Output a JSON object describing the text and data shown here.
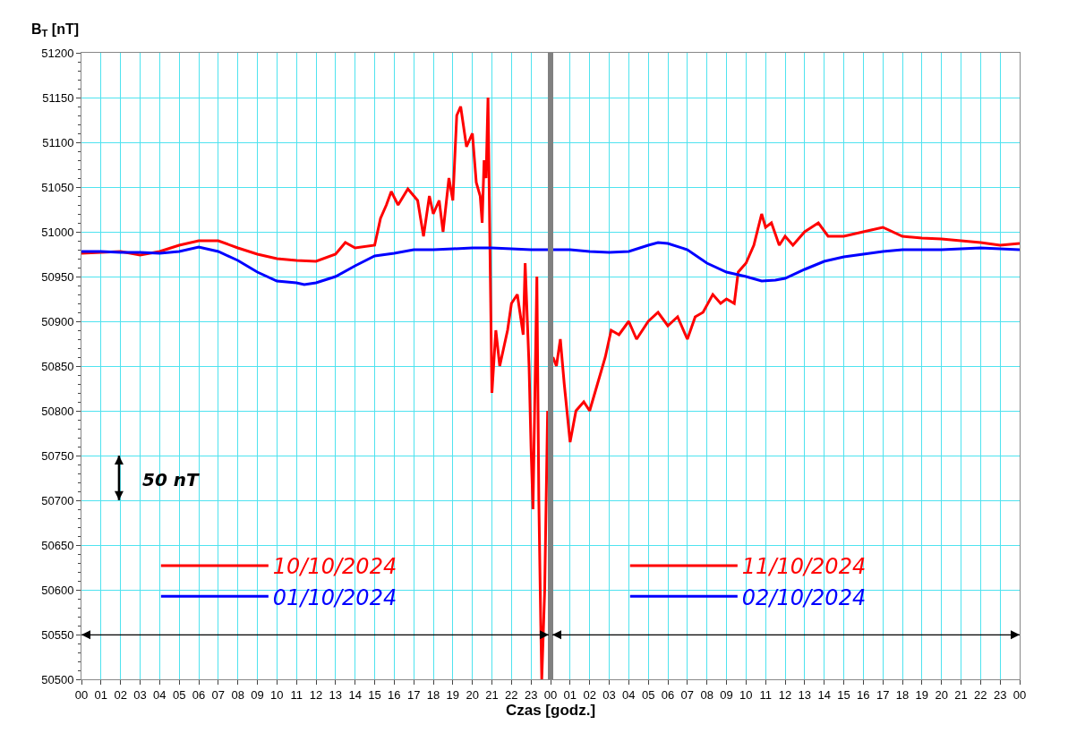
{
  "chart_data": {
    "type": "line",
    "xlabel": "Czas [godz.]",
    "ylabel": "B$_{T}$ [nT]",
    "xlim": [
      0,
      48
    ],
    "ylim": [
      50500,
      51200
    ],
    "xticks": [
      {
        "value": 0,
        "label": "00"
      },
      {
        "value": 1,
        "label": "01"
      },
      {
        "value": 2,
        "label": "02"
      },
      {
        "value": 3,
        "label": "03"
      },
      {
        "value": 4,
        "label": "04"
      },
      {
        "value": 5,
        "label": "05"
      },
      {
        "value": 6,
        "label": "06"
      },
      {
        "value": 7,
        "label": "07"
      },
      {
        "value": 8,
        "label": "08"
      },
      {
        "value": 9,
        "label": "09"
      },
      {
        "value": 10,
        "label": "10"
      },
      {
        "value": 11,
        "label": "11"
      },
      {
        "value": 12,
        "label": "12"
      },
      {
        "value": 13,
        "label": "13"
      },
      {
        "value": 14,
        "label": "14"
      },
      {
        "value": 15,
        "label": "15"
      },
      {
        "value": 16,
        "label": "16"
      },
      {
        "value": 17,
        "label": "17"
      },
      {
        "value": 18,
        "label": "18"
      },
      {
        "value": 19,
        "label": "19"
      },
      {
        "value": 20,
        "label": "20"
      },
      {
        "value": 21,
        "label": "21"
      },
      {
        "value": 22,
        "label": "22"
      },
      {
        "value": 23,
        "label": "23"
      },
      {
        "value": 24,
        "label": "00"
      },
      {
        "value": 25,
        "label": "01"
      },
      {
        "value": 26,
        "label": "02"
      },
      {
        "value": 27,
        "label": "03"
      },
      {
        "value": 28,
        "label": "04"
      },
      {
        "value": 29,
        "label": "05"
      },
      {
        "value": 30,
        "label": "06"
      },
      {
        "value": 31,
        "label": "07"
      },
      {
        "value": 32,
        "label": "08"
      },
      {
        "value": 33,
        "label": "09"
      },
      {
        "value": 34,
        "label": "10"
      },
      {
        "value": 35,
        "label": "11"
      },
      {
        "value": 36,
        "label": "12"
      },
      {
        "value": 37,
        "label": "13"
      },
      {
        "value": 38,
        "label": "14"
      },
      {
        "value": 39,
        "label": "15"
      },
      {
        "value": 40,
        "label": "16"
      },
      {
        "value": 41,
        "label": "17"
      },
      {
        "value": 42,
        "label": "18"
      },
      {
        "value": 43,
        "label": "19"
      },
      {
        "value": 44,
        "label": "20"
      },
      {
        "value": 45,
        "label": "21"
      },
      {
        "value": 46,
        "label": "22"
      },
      {
        "value": 47,
        "label": "23"
      },
      {
        "value": 48,
        "label": "00"
      }
    ],
    "yticks": [
      50500,
      50550,
      50600,
      50650,
      50700,
      50750,
      50800,
      50850,
      50900,
      50950,
      51000,
      51050,
      51100,
      51150,
      51200
    ],
    "grid": true,
    "legend": "bottom",
    "marker": "none",
    "line_style": "solid",
    "series": [
      {
        "name": "10/10/2024",
        "color": "#ff0000",
        "x": [
          0,
          1,
          2,
          3,
          4,
          5,
          6,
          7,
          8,
          9,
          10,
          11,
          12,
          13,
          13.5,
          14,
          15,
          15.3,
          15.6,
          15.85,
          16.2,
          16.7,
          17.2,
          17.5,
          17.8,
          18,
          18.3,
          18.5,
          18.8,
          19,
          19.2,
          19.4,
          19.7,
          20,
          20.2,
          20.4,
          20.5,
          20.6,
          20.7,
          20.8,
          20.9,
          21,
          21.2,
          21.4,
          21.6,
          21.8,
          22,
          22.3,
          22.6,
          22.7,
          22.9,
          23,
          23.1,
          23.3,
          23.4,
          23.5,
          23.55,
          23.7,
          23.85
        ],
        "values": [
          50976,
          50977,
          50978,
          50974,
          50978,
          50985,
          50990,
          50990,
          50982,
          50975,
          50970,
          50968,
          50967,
          50975,
          50988,
          50982,
          50985,
          51015,
          51030,
          51045,
          51030,
          51048,
          51035,
          50995,
          51040,
          51020,
          51035,
          51000,
          51060,
          51035,
          51130,
          51140,
          51095,
          51110,
          51055,
          51040,
          51010,
          51080,
          51060,
          51150,
          50980,
          50820,
          50890,
          50850,
          50870,
          50890,
          50920,
          50930,
          50885,
          50965,
          50850,
          50760,
          50690,
          50950,
          50700,
          50560,
          50500,
          50600,
          50800
        ]
      },
      {
        "name": "11/10/2024",
        "color": "#ff0000",
        "x": [
          24.12,
          24.3,
          24.5,
          24.7,
          25,
          25.3,
          25.7,
          26,
          26.4,
          26.8,
          27.1,
          27.5,
          28,
          28.4,
          29,
          29.5,
          30,
          30.5,
          31,
          31.4,
          31.8,
          32.3,
          32.7,
          33,
          33.4,
          33.6,
          34,
          34.4,
          34.8,
          35,
          35.3,
          35.7,
          36,
          36.4,
          37,
          37.7,
          38.2,
          39,
          40,
          41,
          42,
          43,
          44,
          45,
          46,
          47,
          48
        ],
        "values": [
          50860,
          50850,
          50880,
          50830,
          50765,
          50800,
          50810,
          50800,
          50830,
          50860,
          50890,
          50885,
          50900,
          50880,
          50900,
          50910,
          50895,
          50905,
          50880,
          50905,
          50910,
          50930,
          50920,
          50925,
          50920,
          50955,
          50965,
          50985,
          51020,
          51005,
          51010,
          50985,
          50995,
          50985,
          51000,
          51010,
          50995,
          50995,
          51000,
          51005,
          50995,
          50993,
          50992,
          50990,
          50988,
          50985,
          50987
        ]
      },
      {
        "name": "01/10/2024",
        "color": "#0000ff",
        "x": [
          0,
          1,
          2,
          3,
          4,
          5,
          6,
          7,
          8,
          9,
          10,
          11,
          11.4,
          12,
          13,
          14,
          15,
          16,
          17,
          18,
          19,
          20,
          21,
          22,
          23,
          23.88
        ],
        "values": [
          50978,
          50978,
          50977,
          50977,
          50976,
          50978,
          50983,
          50978,
          50968,
          50955,
          50945,
          50943,
          50941,
          50943,
          50950,
          50962,
          50973,
          50976,
          50980,
          50980,
          50981,
          50982,
          50982,
          50981,
          50980,
          50980
        ]
      },
      {
        "name": "02/10/2024",
        "color": "#0000ff",
        "x": [
          24.12,
          25,
          26,
          27,
          28,
          29,
          29.5,
          30,
          31,
          32,
          33,
          34,
          34.8,
          35.5,
          36,
          37,
          38,
          39,
          40,
          41,
          42,
          43,
          44,
          45,
          46,
          47,
          48
        ],
        "values": [
          50980,
          50980,
          50978,
          50977,
          50978,
          50985,
          50988,
          50987,
          50980,
          50965,
          50955,
          50950,
          50945,
          50946,
          50948,
          50958,
          50967,
          50972,
          50975,
          50978,
          50980,
          50980,
          50980,
          50981,
          50982,
          50981,
          50980
        ]
      }
    ],
    "ref_lines": [
      {
        "axis": "x",
        "value": 24,
        "color": "#808080"
      }
    ],
    "annotations": [
      "50 nT"
    ]
  }
}
